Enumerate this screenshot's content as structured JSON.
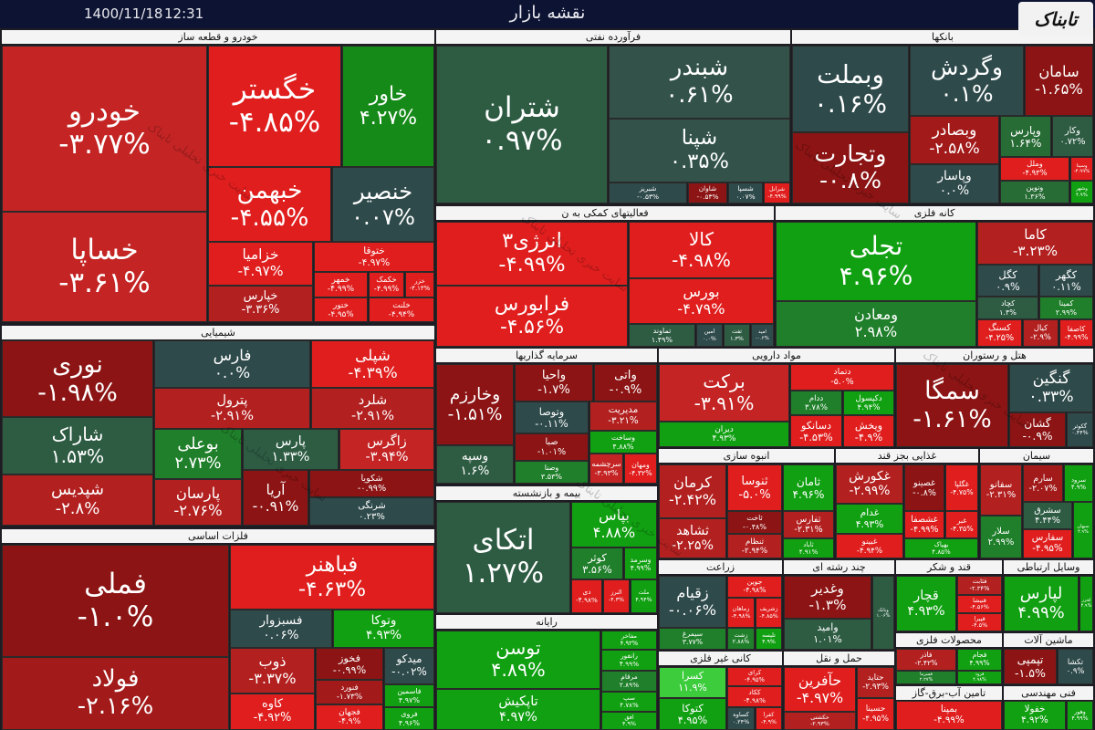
{
  "header": {
    "title": "نقشه بازار",
    "date": "1400/11/18",
    "time": "12:31",
    "logo": "تابناک",
    "watermark": "سایت خبری تحلیلی تابناک"
  },
  "sectors": [
    {
      "title": "خودرو و قطعه ساز",
      "tiles": [
        {
          "name": "خودرو",
          "change": "-۳.۷۷%"
        },
        {
          "name": "خگستر",
          "change": "-۴.۸۵%"
        },
        {
          "name": "خاور",
          "change": "۴.۲۷%"
        },
        {
          "name": "خبهمن",
          "change": "-۴.۵۵%"
        },
        {
          "name": "خنصیر",
          "change": "۰.۰۷%"
        },
        {
          "name": "خساپا",
          "change": "-۳.۶۱%"
        },
        {
          "name": "خزامیا",
          "change": "-۴.۹۷%"
        },
        {
          "name": "ختوقا",
          "change": "-۴.۹۷%"
        },
        {
          "name": "خپارس",
          "change": "-۳.۳۶%"
        },
        {
          "name": "خمهر",
          "change": "-۴.۹۹%"
        },
        {
          "name": "خکمک",
          "change": "-۴.۹۹%"
        },
        {
          "name": "خزر",
          "change": "-۴.۱۳%"
        },
        {
          "name": "ختور",
          "change": "-۴.۹۵%"
        },
        {
          "name": "خلنت",
          "change": "-۴.۹۴%"
        }
      ]
    },
    {
      "title": "شیمیایی",
      "tiles": [
        {
          "name": "نوری",
          "change": "-۱.۹۸%"
        },
        {
          "name": "فارس",
          "change": "۰.۰%"
        },
        {
          "name": "شپلی",
          "change": "-۴.۳۹%"
        },
        {
          "name": "پترول",
          "change": "-۲.۹۱%"
        },
        {
          "name": "شلرد",
          "change": "-۲.۹۱%"
        },
        {
          "name": "شاراک",
          "change": "۱.۵۳%"
        },
        {
          "name": "بوعلی",
          "change": "۲.۷۳%"
        },
        {
          "name": "پارس",
          "change": "۱.۳۳%"
        },
        {
          "name": "زاگرس",
          "change": "-۳.۹۴%"
        },
        {
          "name": "شپدیس",
          "change": "-۲.۸%"
        },
        {
          "name": "پارسان",
          "change": "-۲.۷۶%"
        },
        {
          "name": "آریا",
          "change": "-۰.۹۱%"
        },
        {
          "name": "شکویا",
          "change": "-۰.۹۹%"
        },
        {
          "name": "شرنگی",
          "change": "۰.۲۳%"
        }
      ]
    },
    {
      "title": "فلزات اساسی",
      "tiles": [
        {
          "name": "فملی",
          "change": "-۱.۰%"
        },
        {
          "name": "فولاد",
          "change": "-۲.۱۶%"
        },
        {
          "name": "فباهنر",
          "change": "-۴.۶۳%"
        },
        {
          "name": "فسبزوار",
          "change": "۰.۰۶%"
        },
        {
          "name": "وتوکا",
          "change": "۴.۹۳%"
        },
        {
          "name": "ذوب",
          "change": "-۳.۳۷%"
        },
        {
          "name": "فخوز",
          "change": "-۰.۹۹%"
        },
        {
          "name": "میدکو",
          "change": "-۰.۰۲%"
        },
        {
          "name": "کاوه",
          "change": "-۴.۹۲%"
        },
        {
          "name": "فنورد",
          "change": "-۱.۷۳%"
        },
        {
          "name": "فجهان",
          "change": "-۴.۹%"
        },
        {
          "name": "فاسمین",
          "change": "۴.۹۷%"
        },
        {
          "name": "فروی",
          "change": "۴.۹۶%"
        }
      ]
    },
    {
      "title": "فرآورده نفتی",
      "tiles": [
        {
          "name": "شتران",
          "change": "۰.۹۷%"
        },
        {
          "name": "شبندر",
          "change": "۰.۶۱%"
        },
        {
          "name": "شپنا",
          "change": "۰.۳۵%"
        },
        {
          "name": "شبریز",
          "change": "-۰.۵۳%"
        },
        {
          "name": "شاوان",
          "change": "-۰.۵۳%"
        },
        {
          "name": "شسپا",
          "change": "۰.۰۷%"
        },
        {
          "name": "شرانل",
          "change": "-۴.۹۹%"
        }
      ]
    },
    {
      "title": "بانکها",
      "tiles": [
        {
          "name": "وبملت",
          "change": "۰.۱۶%"
        },
        {
          "name": "وگردش",
          "change": "۰.۱%"
        },
        {
          "name": "سامان",
          "change": "-۱.۶۵%"
        },
        {
          "name": "وتجارت",
          "change": "-۰.۸%"
        },
        {
          "name": "وبصادر",
          "change": "-۲.۵۸%"
        },
        {
          "name": "وپارس",
          "change": "۱.۶۴%"
        },
        {
          "name": "وکار",
          "change": "۰.۷۲%"
        },
        {
          "name": "وپاسار",
          "change": "۰.۰%"
        },
        {
          "name": "وملل",
          "change": "-۴.۹۳%"
        },
        {
          "name": "وسینا",
          "change": "-۴.۹۹%"
        },
        {
          "name": "ونوین",
          "change": "۱.۳۶%"
        },
        {
          "name": "وشهر",
          "change": "۴.۹%"
        }
      ]
    },
    {
      "title": "فعالیتهای کمکی به ن",
      "tiles": [
        {
          "name": "انرژی۳",
          "change": "-۴.۹۹%"
        },
        {
          "name": "فرابورس",
          "change": "-۴.۵۶%"
        },
        {
          "name": "کالا",
          "change": "-۴.۹۸%"
        },
        {
          "name": "بورس",
          "change": "-۴.۷۹%"
        },
        {
          "name": "تماوند",
          "change": "۱.۴۹%"
        },
        {
          "name": "امین",
          "change": "۰.۰%"
        },
        {
          "name": "ثفت",
          "change": "۱.۳%"
        },
        {
          "name": "امید",
          "change": "-۰.۲%"
        }
      ]
    },
    {
      "title": "کانه فلزی",
      "tiles": [
        {
          "name": "تجلی",
          "change": "۴.۹۶%"
        },
        {
          "name": "ومعادن",
          "change": "۲.۹۸%"
        },
        {
          "name": "کاما",
          "change": "-۳.۲۳%"
        },
        {
          "name": "کگل",
          "change": "۰.۹%"
        },
        {
          "name": "کگهر",
          "change": "۰.۱۱%"
        },
        {
          "name": "کچاد",
          "change": "۱.۴%"
        },
        {
          "name": "کمینا",
          "change": "۲.۹۹%"
        },
        {
          "name": "کسنگ",
          "change": "-۴.۲۵%"
        },
        {
          "name": "کیال",
          "change": "-۲.۹%"
        },
        {
          "name": "کاصفا",
          "change": "-۴.۹۹%"
        }
      ]
    },
    {
      "title": "سرمایه گذاریها",
      "tiles": [
        {
          "name": "وخارزم",
          "change": "-۱.۵۱%"
        },
        {
          "name": "وسپه",
          "change": "۱.۶%"
        },
        {
          "name": "واحیا",
          "change": "-۱.۷%"
        },
        {
          "name": "واتی",
          "change": "-۰.۹%"
        },
        {
          "name": "وتوصا",
          "change": "-۰.۱۱%"
        },
        {
          "name": "مدیریت",
          "change": "-۳.۲۱%"
        },
        {
          "name": "صبا",
          "change": "-۱.۰۱%"
        },
        {
          "name": "وساخت",
          "change": "۴.۸۸%"
        },
        {
          "name": "وصنا",
          "change": "۳.۵۳%"
        },
        {
          "name": "سرچشمه",
          "change": "-۳.۹۳%"
        },
        {
          "name": "ومهان",
          "change": "-۴.۳۲%"
        }
      ]
    },
    {
      "title": "مواد دارویی",
      "tiles": [
        {
          "name": "برکت",
          "change": "-۳.۹۱%"
        },
        {
          "name": "دیران",
          "change": "۴.۹۳%"
        },
        {
          "name": "دتماد",
          "change": "-۵.۰%"
        },
        {
          "name": "ددام",
          "change": "۳.۷۸%"
        },
        {
          "name": "دکپسول",
          "change": "۴.۹۴%"
        },
        {
          "name": "دسانکو",
          "change": "-۴.۵۳%"
        },
        {
          "name": "ویخش",
          "change": "-۴.۹%"
        }
      ]
    },
    {
      "title": "هتل و رستوران",
      "tiles": [
        {
          "name": "سمگا",
          "change": "-۱.۶۱%"
        },
        {
          "name": "گنگین",
          "change": "۰.۳۳%"
        },
        {
          "name": "گشان",
          "change": "-۰.۹%"
        },
        {
          "name": "گکوثر",
          "change": "۰.۴۴%"
        }
      ]
    },
    {
      "title": "انبوه سازی",
      "tiles": [
        {
          "name": "کرمان",
          "change": "-۲.۴۲%"
        },
        {
          "name": "ثشاهد",
          "change": "-۲.۲۵%"
        },
        {
          "name": "ثنوسا",
          "change": "-۵.۰%"
        },
        {
          "name": "ثامان",
          "change": "۴.۹۶%"
        },
        {
          "name": "ثاخت",
          "change": "-۰.۴۸%"
        },
        {
          "name": "ثنظام",
          "change": "-۲.۹۴%"
        },
        {
          "name": "ثفارس",
          "change": "-۲.۳۱%"
        },
        {
          "name": "ثاباد",
          "change": "۴.۹۱%"
        }
      ]
    },
    {
      "title": "غذایی بجز قند",
      "tiles": [
        {
          "name": "غکورش",
          "change": "-۲.۹۹%"
        },
        {
          "name": "غدام",
          "change": "۴.۹۳%"
        },
        {
          "name": "غبینو",
          "change": "-۴.۹۴%"
        },
        {
          "name": "غصینو",
          "change": "-۰.۸%"
        },
        {
          "name": "غگلپا",
          "change": "-۴.۷۵%"
        },
        {
          "name": "غشصفا",
          "change": "-۴.۹۹%"
        },
        {
          "name": "غبر",
          "change": "-۴.۳۵%"
        },
        {
          "name": "بهپاک",
          "change": "۴.۸۵%"
        }
      ]
    },
    {
      "title": "سیمان",
      "tiles": [
        {
          "name": "سفانو",
          "change": "-۲.۳۱%"
        },
        {
          "name": "سارم",
          "change": "-۲.۰۷%"
        },
        {
          "name": "سرود",
          "change": "۴.۹%"
        },
        {
          "name": "سلار",
          "change": "۲.۹۹%"
        },
        {
          "name": "سشرق",
          "change": "۴.۴۴%"
        },
        {
          "name": "سفارس",
          "change": "-۴.۹۵%"
        },
        {
          "name": "سبهان",
          "change": "۴.۹%"
        }
      ]
    },
    {
      "title": "بیمه و بازنشسته",
      "tiles": [
        {
          "name": "اتکای",
          "change": "۱.۲۷%"
        },
        {
          "name": "بپاس",
          "change": "۴.۸۸%"
        },
        {
          "name": "کوثر",
          "change": "۳.۵۶%"
        },
        {
          "name": "وسرمد",
          "change": "۴.۹۹%"
        },
        {
          "name": "دی",
          "change": "-۴.۹۸%"
        },
        {
          "name": "البرز",
          "change": "-۴.۳%"
        },
        {
          "name": "ملت",
          "change": "۴.۹۴%"
        }
      ]
    },
    {
      "title": "رایانه",
      "tiles": [
        {
          "name": "توسن",
          "change": "۴.۸۹%"
        },
        {
          "name": "تاپکیش",
          "change": "۴.۹۷%"
        },
        {
          "name": "مفاخر",
          "change": "۴.۹۳%"
        },
        {
          "name": "رانفور",
          "change": "۴.۹۹%"
        },
        {
          "name": "مرقام",
          "change": "۲.۸۹%"
        },
        {
          "name": "سپ",
          "change": "۴.۷۸%"
        },
        {
          "name": "افق",
          "change": "۴.۹%"
        }
      ]
    },
    {
      "title": "زراعت",
      "tiles": [
        {
          "name": "زقیام",
          "change": "-۰.۰۶%"
        },
        {
          "name": "سیمرغ",
          "change": "۳.۷۷%"
        },
        {
          "name": "جوین",
          "change": "-۴.۹۸%"
        },
        {
          "name": "زماهان",
          "change": "-۴.۹۸%"
        },
        {
          "name": "زشریف",
          "change": "-۴.۸۵%"
        },
        {
          "name": "زشت",
          "change": "۲.۸۸%"
        },
        {
          "name": "تلیسه",
          "change": "۴.۹%"
        }
      ]
    },
    {
      "title": "چند رشته ای",
      "tiles": [
        {
          "name": "وغدیر",
          "change": "-۱.۳%"
        },
        {
          "name": "وامید",
          "change": "۱.۰۱%"
        },
        {
          "name": "وبانک",
          "change": "۱.۰۶%"
        }
      ]
    },
    {
      "title": "قند و شکر",
      "tiles": [
        {
          "name": "قچار",
          "change": "۴.۹۳%"
        },
        {
          "name": "قثابت",
          "change": "-۲.۳۴%"
        },
        {
          "name": "قنیشا",
          "change": "-۴.۵۶%"
        },
        {
          "name": "قپیرا",
          "change": "-۴.۵%"
        }
      ]
    },
    {
      "title": "وسایل ارتباطی",
      "tiles": [
        {
          "name": "لپارس",
          "change": "۴.۹۹%"
        },
        {
          "name": "لخزر",
          "change": "۴.۹%"
        }
      ]
    },
    {
      "title": "کانی غیر فلزی",
      "tiles": [
        {
          "name": "کسرا",
          "change": "۱۱.۹%"
        },
        {
          "name": "کتوکا",
          "change": "۴.۹۵%"
        },
        {
          "name": "کرای",
          "change": "-۴.۹۵%"
        },
        {
          "name": "ککاد",
          "change": "-۴.۹۸%"
        },
        {
          "name": "کساوه",
          "change": "۰.۲۴%"
        },
        {
          "name": "کفرا",
          "change": "-۴.۹%"
        }
      ]
    },
    {
      "title": "حمل و نقل",
      "tiles": [
        {
          "name": "حآفرین",
          "change": "-۴.۹۷%"
        },
        {
          "name": "حکشتی",
          "change": "-۲.۹۳%"
        },
        {
          "name": "حتاید",
          "change": "-۲.۹۳%"
        },
        {
          "name": "حسینا",
          "change": "-۴.۹۵%"
        }
      ]
    },
    {
      "title": "محصولات فلزی",
      "tiles": [
        {
          "name": "فاذر",
          "change": "-۲.۴۲%"
        },
        {
          "name": "فسرما",
          "change": "۲.۲۷%"
        },
        {
          "name": "فجام",
          "change": "۴.۹۹%"
        },
        {
          "name": "فرود",
          "change": "۴.۹۸%"
        }
      ]
    },
    {
      "title": "ماشین آلات",
      "tiles": [
        {
          "name": "تپمپی",
          "change": "-۱.۵%"
        },
        {
          "name": "تکشا",
          "change": "۰.۹%"
        }
      ]
    },
    {
      "title": "تامین آب-برق-گاز",
      "tiles": [
        {
          "name": "بمپنا",
          "change": "-۴.۹۹%"
        }
      ]
    },
    {
      "title": "فنی مهندسی",
      "tiles": [
        {
          "name": "خفولا",
          "change": "۴.۹۲%"
        },
        {
          "name": "وهور",
          "change": "۴.۹۹%"
        }
      ]
    }
  ]
}
